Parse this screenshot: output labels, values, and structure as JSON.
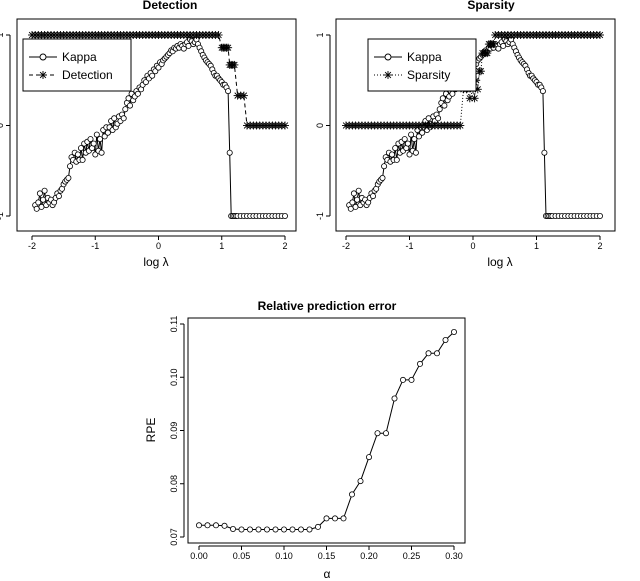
{
  "chart_data": [
    {
      "type": "line",
      "title": "Detection",
      "xlabel": "log λ",
      "ylabel": "",
      "xlim": [
        -2,
        2
      ],
      "ylim": [
        -1,
        1
      ],
      "x_ticks": [
        -2,
        -1,
        0,
        1,
        2
      ],
      "y_ticks": [
        -1,
        0,
        1
      ],
      "grid": false,
      "legend_position": "top-left",
      "series": [
        {
          "name": "Kappa",
          "style": "solid line, open circles",
          "x": [
            -1.95,
            -1.925,
            -1.9,
            -1.875,
            -1.85,
            -1.825,
            -1.8,
            -1.775,
            -1.75,
            -1.725,
            -1.7,
            -1.675,
            -1.65,
            -1.625,
            -1.6,
            -1.575,
            -1.55,
            -1.525,
            -1.5,
            -1.475,
            -1.45,
            -1.425,
            -1.4,
            -1.375,
            -1.35,
            -1.325,
            -1.3,
            -1.275,
            -1.25,
            -1.225,
            -1.2,
            -1.175,
            -1.15,
            -1.125,
            -1.1,
            -1.075,
            -1.05,
            -1.025,
            -1.0,
            -0.975,
            -0.95,
            -0.925,
            -0.9,
            -0.875,
            -0.85,
            -0.825,
            -0.8,
            -0.775,
            -0.75,
            -0.725,
            -0.7,
            -0.675,
            -0.65,
            -0.625,
            -0.6,
            -0.575,
            -0.55,
            -0.525,
            -0.5,
            -0.475,
            -0.45,
            -0.425,
            -0.4,
            -0.375,
            -0.35,
            -0.325,
            -0.3,
            -0.275,
            -0.25,
            -0.225,
            -0.2,
            -0.175,
            -0.15,
            -0.125,
            -0.1,
            -0.075,
            -0.05,
            -0.025,
            0.0,
            0.025,
            0.05,
            0.075,
            0.1,
            0.125,
            0.15,
            0.175,
            0.2,
            0.225,
            0.25,
            0.275,
            0.3,
            0.325,
            0.35,
            0.375,
            0.4,
            0.425,
            0.45,
            0.475,
            0.5,
            0.525,
            0.55,
            0.575,
            0.6,
            0.625,
            0.65,
            0.675,
            0.7,
            0.725,
            0.75,
            0.775,
            0.8,
            0.825,
            0.85,
            0.875,
            0.9,
            0.925,
            0.95,
            0.975,
            1.0,
            1.025,
            1.05,
            1.075,
            1.1,
            1.125,
            1.15,
            1.175,
            1.2,
            1.225,
            1.25,
            1.3,
            1.35,
            1.4,
            1.45,
            1.5,
            1.55,
            1.6,
            1.65,
            1.7,
            1.75,
            1.8,
            1.85,
            1.9,
            1.95,
            2.0
          ],
          "y": [
            -0.88,
            -0.92,
            -0.85,
            -0.75,
            -0.9,
            -0.82,
            -0.72,
            -0.88,
            -0.8,
            -0.85,
            -0.82,
            -0.88,
            -0.85,
            -0.8,
            -0.75,
            -0.78,
            -0.72,
            -0.7,
            -0.65,
            -0.62,
            -0.6,
            -0.58,
            -0.45,
            -0.35,
            -0.38,
            -0.3,
            -0.4,
            -0.32,
            -0.38,
            -0.25,
            -0.38,
            -0.2,
            -0.3,
            -0.18,
            -0.28,
            -0.15,
            -0.25,
            -0.2,
            -0.32,
            -0.1,
            -0.28,
            -0.15,
            -0.3,
            -0.05,
            -0.12,
            -0.02,
            -0.08,
            -0.02,
            0.05,
            -0.05,
            0.08,
            -0.02,
            0.02,
            0.1,
            0.05,
            0.12,
            0.08,
            0.18,
            0.25,
            0.3,
            0.22,
            0.35,
            0.28,
            0.32,
            0.38,
            0.35,
            0.42,
            0.4,
            0.45,
            0.5,
            0.48,
            0.55,
            0.52,
            0.58,
            0.55,
            0.62,
            0.6,
            0.66,
            0.64,
            0.7,
            0.68,
            0.72,
            0.74,
            0.76,
            0.78,
            0.8,
            0.83,
            0.82,
            0.86,
            0.85,
            0.88,
            0.86,
            0.9,
            0.88,
            0.85,
            0.9,
            0.92,
            0.88,
            0.95,
            0.93,
            0.9,
            0.92,
            0.95,
            0.9,
            0.86,
            0.82,
            0.78,
            0.75,
            0.72,
            0.7,
            0.68,
            0.66,
            0.62,
            0.58,
            0.55,
            0.55,
            0.52,
            0.5,
            0.48,
            0.45,
            0.45,
            0.42,
            0.38,
            -0.3,
            -1.0,
            -1.0,
            -1.0,
            -1.0,
            -1.0,
            -1.0,
            -1.0,
            -1.0,
            -1.0,
            -1.0,
            -1.0,
            -1.0,
            -1.0,
            -1.0,
            -1.0,
            -1.0,
            -1.0,
            -1.0,
            -1.0,
            -1.0
          ]
        },
        {
          "name": "Detection",
          "style": "dashed line, asterisks",
          "x": [
            -2.0,
            -1.95,
            -1.9,
            -1.85,
            -1.8,
            -1.75,
            -1.7,
            -1.65,
            -1.6,
            -1.55,
            -1.5,
            -1.45,
            -1.4,
            -1.35,
            -1.3,
            -1.25,
            -1.2,
            -1.15,
            -1.1,
            -1.05,
            -1.0,
            -0.95,
            -0.9,
            -0.85,
            -0.8,
            -0.75,
            -0.7,
            -0.65,
            -0.6,
            -0.55,
            -0.5,
            -0.45,
            -0.4,
            -0.35,
            -0.3,
            -0.25,
            -0.2,
            -0.15,
            -0.1,
            -0.05,
            0.0,
            0.05,
            0.1,
            0.15,
            0.2,
            0.25,
            0.3,
            0.35,
            0.4,
            0.45,
            0.5,
            0.55,
            0.6,
            0.65,
            0.7,
            0.75,
            0.8,
            0.85,
            0.9,
            0.95,
            1.0,
            1.025,
            1.05,
            1.075,
            1.1,
            1.125,
            1.15,
            1.175,
            1.2,
            1.25,
            1.3,
            1.35,
            1.4,
            1.45,
            1.5,
            1.55,
            1.6,
            1.65,
            1.7,
            1.75,
            1.8,
            1.85,
            1.9,
            1.95,
            2.0
          ],
          "y": [
            1,
            1,
            1,
            1,
            1,
            1,
            1,
            1,
            1,
            1,
            1,
            1,
            1,
            1,
            1,
            1,
            1,
            1,
            1,
            1,
            1,
            1,
            1,
            1,
            1,
            1,
            1,
            1,
            1,
            1,
            1,
            1,
            1,
            1,
            1,
            1,
            1,
            1,
            1,
            1,
            1,
            1,
            1,
            1,
            1,
            1,
            1,
            1,
            1,
            1,
            1,
            1,
            1,
            1,
            1,
            1,
            1,
            1,
            1,
            1,
            0.86,
            0.86,
            0.86,
            0.86,
            0.86,
            0.67,
            0.67,
            0.67,
            0.67,
            0.33,
            0.33,
            0.33,
            0,
            0,
            0,
            0,
            0,
            0,
            0,
            0,
            0,
            0,
            0,
            0,
            0
          ]
        }
      ]
    },
    {
      "type": "line",
      "title": "Sparsity",
      "xlabel": "log λ",
      "ylabel": "",
      "xlim": [
        -2,
        2
      ],
      "ylim": [
        -1,
        1
      ],
      "x_ticks": [
        -2,
        -1,
        0,
        1,
        2
      ],
      "y_ticks": [
        -1,
        0,
        1
      ],
      "grid": false,
      "legend_position": "top-left",
      "series": [
        {
          "name": "Kappa",
          "style": "solid line, open circles",
          "x": [
            -1.95,
            -1.925,
            -1.9,
            -1.875,
            -1.85,
            -1.825,
            -1.8,
            -1.775,
            -1.75,
            -1.725,
            -1.7,
            -1.675,
            -1.65,
            -1.625,
            -1.6,
            -1.575,
            -1.55,
            -1.525,
            -1.5,
            -1.475,
            -1.45,
            -1.425,
            -1.4,
            -1.375,
            -1.35,
            -1.325,
            -1.3,
            -1.275,
            -1.25,
            -1.225,
            -1.2,
            -1.175,
            -1.15,
            -1.125,
            -1.1,
            -1.075,
            -1.05,
            -1.025,
            -1.0,
            -0.975,
            -0.95,
            -0.925,
            -0.9,
            -0.875,
            -0.85,
            -0.825,
            -0.8,
            -0.775,
            -0.75,
            -0.725,
            -0.7,
            -0.675,
            -0.65,
            -0.625,
            -0.6,
            -0.575,
            -0.55,
            -0.525,
            -0.5,
            -0.475,
            -0.45,
            -0.425,
            -0.4,
            -0.375,
            -0.35,
            -0.325,
            -0.3,
            -0.275,
            -0.25,
            -0.225,
            -0.2,
            -0.175,
            -0.15,
            -0.125,
            -0.1,
            -0.075,
            -0.05,
            -0.025,
            0.0,
            0.025,
            0.05,
            0.075,
            0.1,
            0.125,
            0.15,
            0.175,
            0.2,
            0.225,
            0.25,
            0.275,
            0.3,
            0.325,
            0.35,
            0.375,
            0.4,
            0.425,
            0.45,
            0.475,
            0.5,
            0.525,
            0.55,
            0.575,
            0.6,
            0.625,
            0.65,
            0.675,
            0.7,
            0.725,
            0.75,
            0.775,
            0.8,
            0.825,
            0.85,
            0.875,
            0.9,
            0.925,
            0.95,
            0.975,
            1.0,
            1.025,
            1.05,
            1.075,
            1.1,
            1.125,
            1.15,
            1.175,
            1.2,
            1.225,
            1.25,
            1.3,
            1.35,
            1.4,
            1.45,
            1.5,
            1.55,
            1.6,
            1.65,
            1.7,
            1.75,
            1.8,
            1.85,
            1.9,
            1.95,
            2.0
          ],
          "y": [
            -0.88,
            -0.92,
            -0.85,
            -0.75,
            -0.9,
            -0.82,
            -0.72,
            -0.88,
            -0.8,
            -0.85,
            -0.82,
            -0.88,
            -0.85,
            -0.8,
            -0.75,
            -0.78,
            -0.72,
            -0.7,
            -0.65,
            -0.62,
            -0.6,
            -0.58,
            -0.45,
            -0.35,
            -0.38,
            -0.3,
            -0.4,
            -0.32,
            -0.38,
            -0.25,
            -0.38,
            -0.2,
            -0.3,
            -0.18,
            -0.28,
            -0.15,
            -0.25,
            -0.2,
            -0.32,
            -0.1,
            -0.28,
            -0.15,
            -0.3,
            -0.05,
            -0.12,
            -0.02,
            -0.08,
            -0.02,
            0.05,
            -0.05,
            0.08,
            -0.02,
            0.02,
            0.1,
            0.05,
            0.12,
            0.08,
            0.18,
            0.25,
            0.3,
            0.22,
            0.35,
            0.28,
            0.32,
            0.38,
            0.35,
            0.42,
            0.4,
            0.45,
            0.5,
            0.48,
            0.55,
            0.52,
            0.58,
            0.55,
            0.62,
            0.6,
            0.66,
            0.64,
            0.7,
            0.68,
            0.72,
            0.74,
            0.76,
            0.78,
            0.8,
            0.83,
            0.82,
            0.86,
            0.85,
            0.88,
            0.86,
            0.9,
            0.88,
            0.85,
            0.9,
            0.92,
            0.88,
            0.95,
            0.93,
            0.9,
            0.92,
            0.95,
            0.9,
            0.86,
            0.82,
            0.78,
            0.75,
            0.72,
            0.7,
            0.68,
            0.66,
            0.62,
            0.58,
            0.55,
            0.55,
            0.52,
            0.5,
            0.48,
            0.45,
            0.45,
            0.42,
            0.38,
            -0.3,
            -1.0,
            -1.0,
            -1.0,
            -1.0,
            -1.0,
            -1.0,
            -1.0,
            -1.0,
            -1.0,
            -1.0,
            -1.0,
            -1.0,
            -1.0,
            -1.0,
            -1.0,
            -1.0,
            -1.0,
            -1.0,
            -1.0,
            -1.0
          ]
        },
        {
          "name": "Sparsity",
          "style": "dotted line, asterisks",
          "x": [
            -2.0,
            -1.95,
            -1.9,
            -1.85,
            -1.8,
            -1.75,
            -1.7,
            -1.65,
            -1.6,
            -1.55,
            -1.5,
            -1.45,
            -1.4,
            -1.35,
            -1.3,
            -1.25,
            -1.2,
            -1.15,
            -1.1,
            -1.05,
            -1.0,
            -0.95,
            -0.9,
            -0.85,
            -0.8,
            -0.75,
            -0.7,
            -0.65,
            -0.6,
            -0.55,
            -0.5,
            -0.45,
            -0.4,
            -0.35,
            -0.3,
            -0.25,
            -0.2,
            -0.15,
            -0.1,
            -0.05,
            0.0,
            0.025,
            0.05,
            0.075,
            0.1,
            0.125,
            0.15,
            0.175,
            0.2,
            0.225,
            0.25,
            0.275,
            0.3,
            0.325,
            0.35,
            0.4,
            0.45,
            0.5,
            0.55,
            0.6,
            0.65,
            0.7,
            0.75,
            0.8,
            0.85,
            0.9,
            0.95,
            1.0,
            1.05,
            1.1,
            1.15,
            1.2,
            1.25,
            1.3,
            1.35,
            1.4,
            1.45,
            1.5,
            1.55,
            1.6,
            1.65,
            1.7,
            1.75,
            1.8,
            1.85,
            1.9,
            1.95,
            2.0
          ],
          "y": [
            0,
            0,
            0,
            0,
            0,
            0,
            0,
            0,
            0,
            0,
            0,
            0,
            0,
            0,
            0,
            0,
            0,
            0,
            0,
            0,
            0,
            0,
            0,
            0,
            0,
            0,
            0,
            0,
            0,
            0,
            0,
            0,
            0,
            0,
            0,
            0,
            0,
            0.4,
            0.4,
            0.3,
            0.4,
            0.3,
            0.5,
            0.4,
            0.6,
            0.6,
            0.8,
            0.8,
            0.8,
            0.8,
            0.9,
            0.9,
            0.9,
            0.9,
            1,
            1,
            1,
            1,
            1,
            1,
            1,
            1,
            1,
            1,
            1,
            1,
            1,
            1,
            1,
            1,
            1,
            1,
            1,
            1,
            1,
            1,
            1,
            1,
            1,
            1,
            1,
            1,
            1,
            1,
            1,
            1,
            1,
            1
          ]
        }
      ]
    },
    {
      "type": "line",
      "title": "Relative prediction error",
      "xlabel": "α",
      "ylabel": "RPE",
      "xlim": [
        0,
        0.3
      ],
      "ylim": [
        0.07,
        0.11
      ],
      "x_ticks": [
        "0.00",
        "0.05",
        "0.10",
        "0.15",
        "0.20",
        "0.25",
        "0.30"
      ],
      "y_ticks": [
        "0.07",
        "0.08",
        "0.09",
        "0.10",
        "0.11"
      ],
      "grid": false,
      "series": [
        {
          "style": "solid line, open circles",
          "x": [
            0.0,
            0.01,
            0.02,
            0.03,
            0.04,
            0.05,
            0.06,
            0.07,
            0.08,
            0.09,
            0.1,
            0.11,
            0.12,
            0.13,
            0.14,
            0.15,
            0.16,
            0.17,
            0.18,
            0.19,
            0.2,
            0.21,
            0.22,
            0.23,
            0.24,
            0.25,
            0.26,
            0.27,
            0.28,
            0.29,
            0.3
          ],
          "y": [
            0.0722,
            0.0722,
            0.0722,
            0.0721,
            0.0715,
            0.0714,
            0.0714,
            0.0714,
            0.0714,
            0.0714,
            0.0714,
            0.0714,
            0.0714,
            0.0714,
            0.0719,
            0.0735,
            0.0735,
            0.0735,
            0.078,
            0.0805,
            0.085,
            0.0895,
            0.0895,
            0.096,
            0.0995,
            0.0995,
            0.1025,
            0.1045,
            0.1045,
            0.107,
            0.1085
          ]
        }
      ]
    }
  ]
}
